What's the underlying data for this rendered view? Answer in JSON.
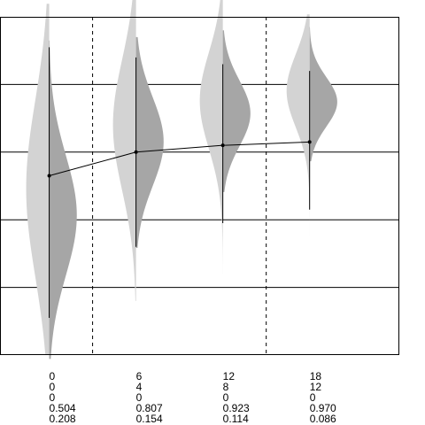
{
  "chart_data": {
    "type": "violin",
    "title": "",
    "xlabel": "",
    "ylabel": "",
    "x": [
      0,
      6,
      12,
      18
    ],
    "x_range": [
      -3.4,
      24.2
    ],
    "y_range": [
      0,
      1
    ],
    "gridlines_y": [
      0.2,
      0.4,
      0.6,
      0.8
    ],
    "vertical_dividers_x": [
      3,
      15
    ],
    "grid": true,
    "legend": "none",
    "mean_line": [
      0.504,
      0.807,
      0.923,
      0.97
    ],
    "distributions": [
      {
        "x": 0,
        "mean": 0.504,
        "sd": 0.208,
        "min": 0.0,
        "max": 0.93,
        "whisker_low": 0.11,
        "whisker_high": 0.91
      },
      {
        "x": 6,
        "mean": 0.807,
        "sd": 0.154,
        "min": 0.16,
        "max": 0.94,
        "whisker_low": 0.32,
        "whisker_high": 0.88
      },
      {
        "x": 12,
        "mean": 0.923,
        "sd": 0.114,
        "min": 0.24,
        "max": 0.96,
        "whisker_low": 0.39,
        "whisker_high": 0.86
      },
      {
        "x": 18,
        "mean": 0.97,
        "sd": 0.086,
        "min": 0.28,
        "max": 0.97,
        "whisker_low": 0.43,
        "whisker_high": 0.84
      }
    ],
    "table_rows": [
      [
        "0",
        "6",
        "12",
        "18"
      ],
      [
        "0",
        "4",
        "8",
        "12"
      ],
      [
        "0",
        "0",
        "0",
        "0"
      ],
      [
        "0.504",
        "0.807",
        "0.923",
        "0.970"
      ],
      [
        "0.208",
        "0.154",
        "0.114",
        "0.086"
      ]
    ],
    "colors": {
      "light_violin": "#d3d3d3",
      "dark_violin": "#a6a6a6",
      "line": "#000000",
      "grid": "#000000",
      "background": "#ffffff"
    }
  }
}
